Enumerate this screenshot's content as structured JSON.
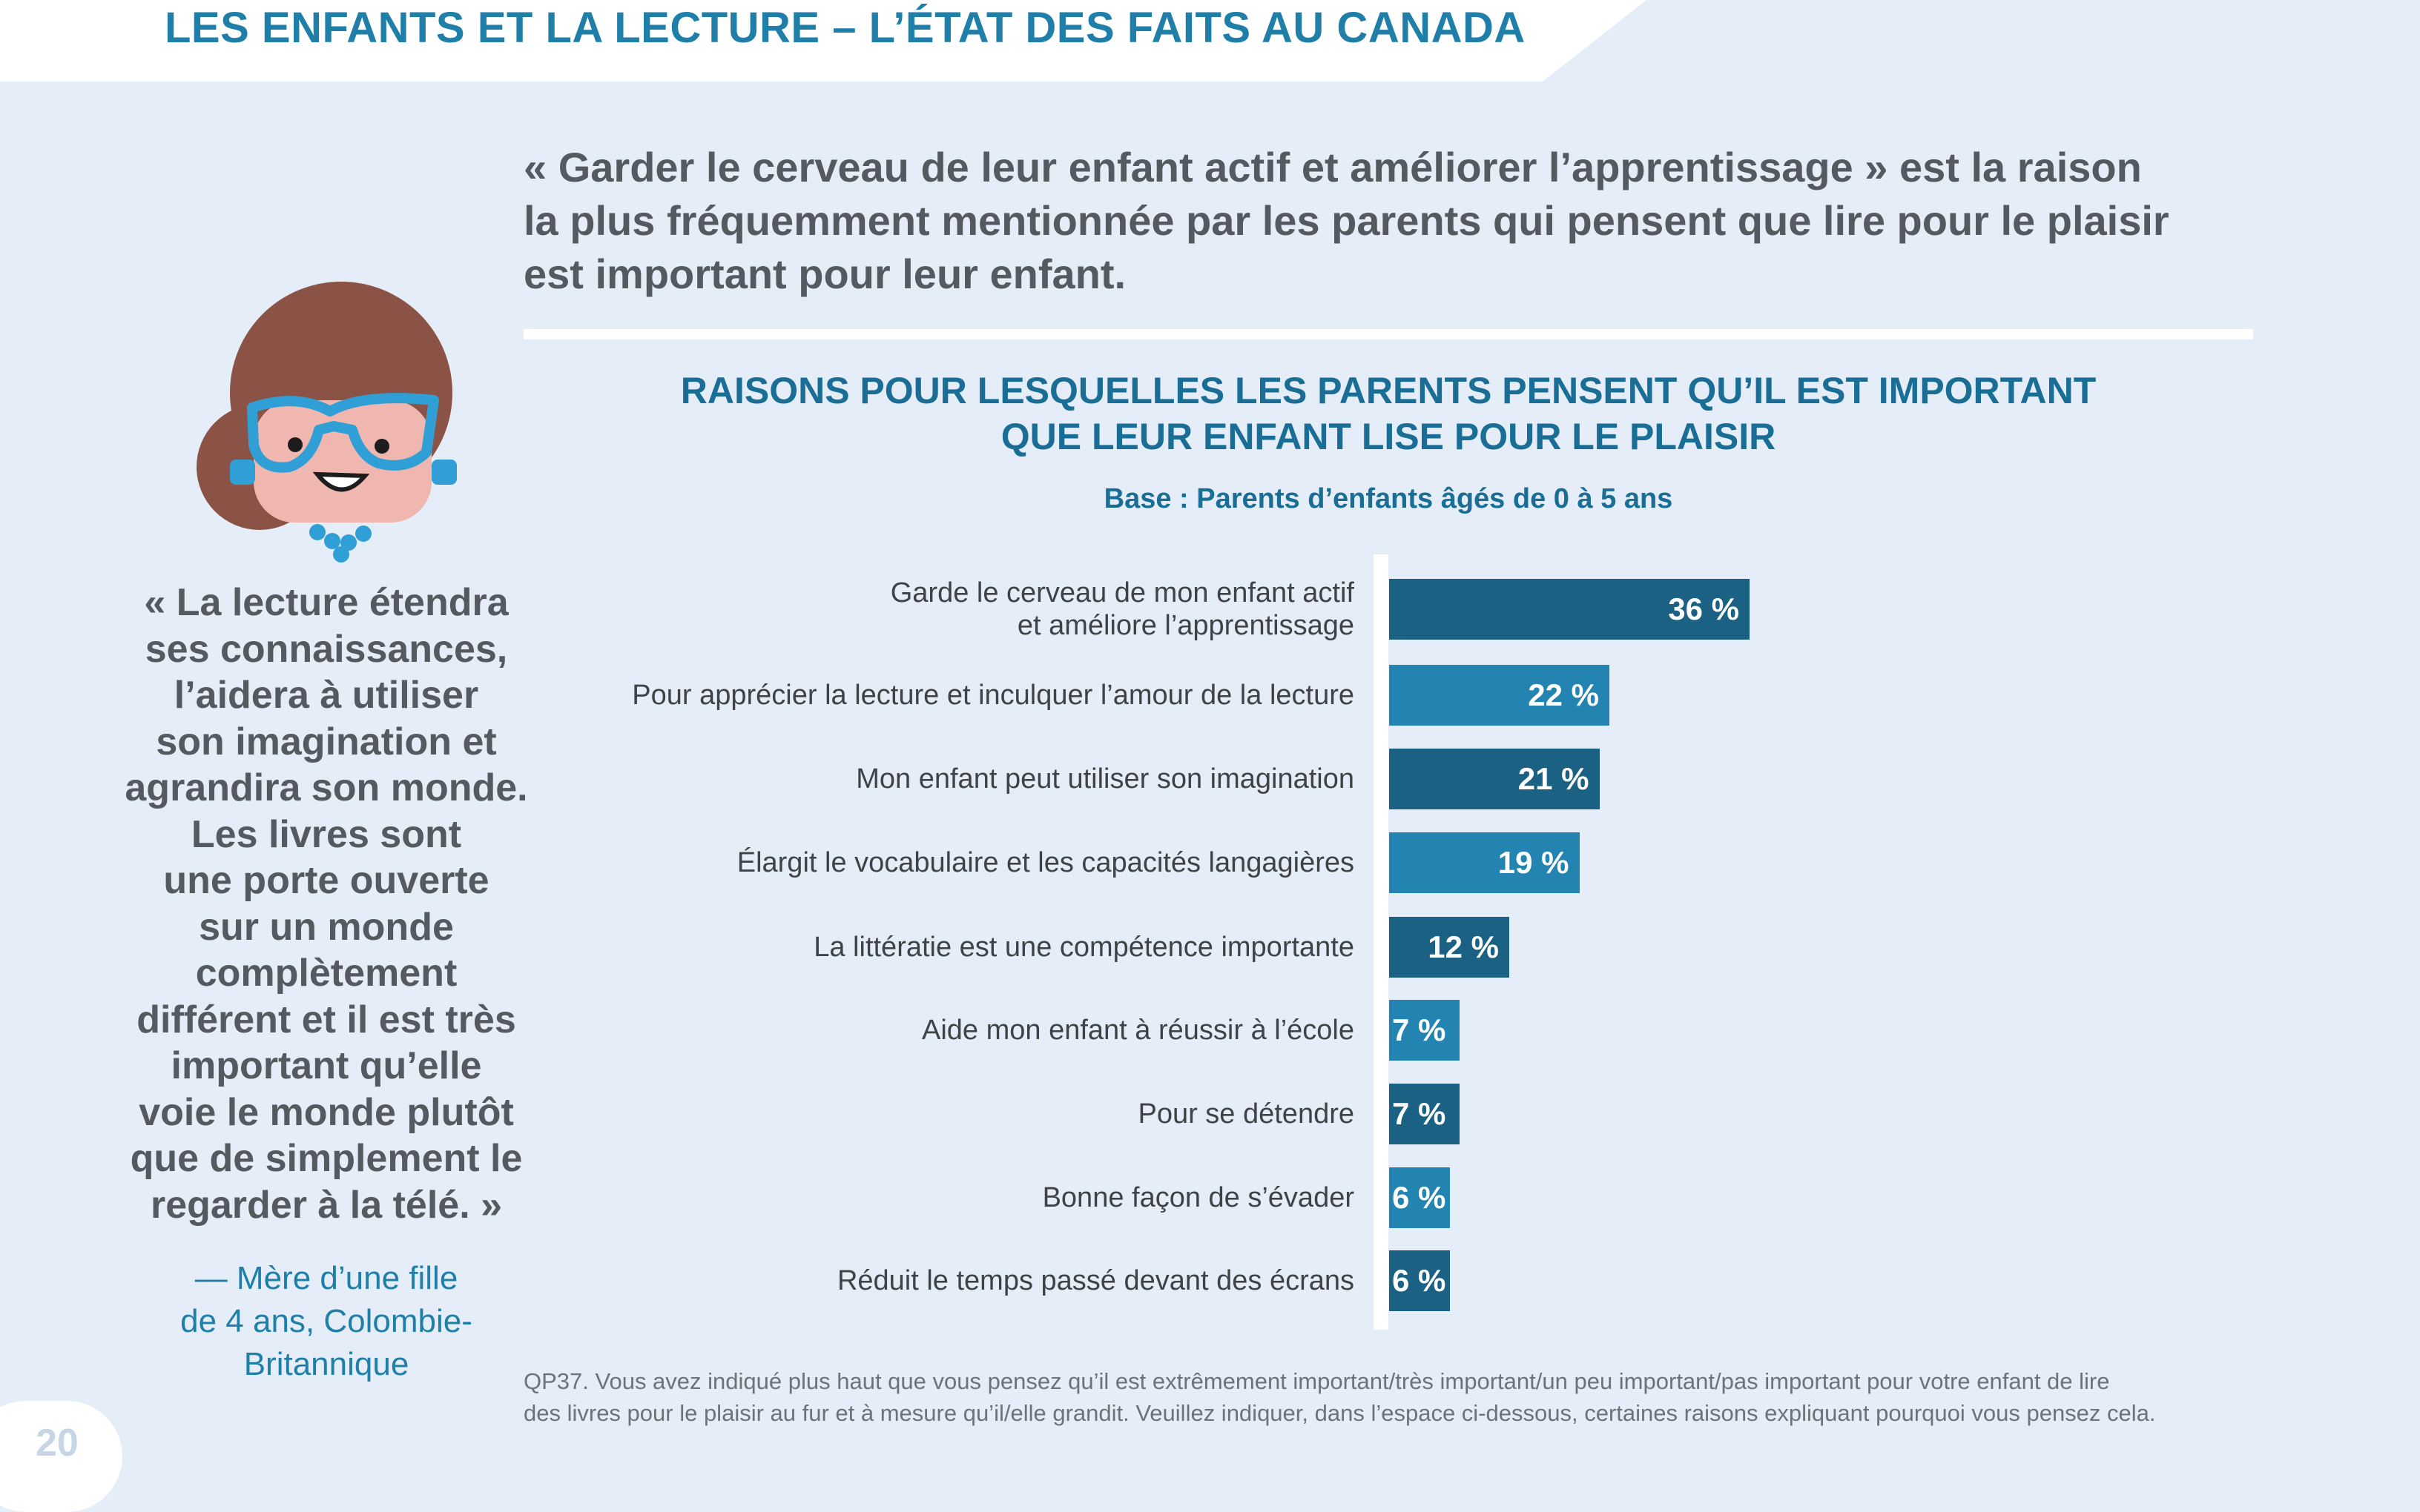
{
  "header": {
    "title": "LES ENFANTS ET LA LECTURE – L’ÉTAT DES FAITS AU CANADA"
  },
  "lead": {
    "lines": [
      "« Garder le cerveau de leur enfant actif et améliorer l’apprentissage » est la raison",
      "la plus fréquemment mentionnée par les parents qui pensent que lire pour le plaisir",
      "est important pour leur enfant."
    ]
  },
  "quote": {
    "lines": [
      "« La lecture étendra",
      "ses connaissances,",
      "l’aidera à utiliser",
      "son imagination et",
      "agrandira son monde.",
      "Les livres sont",
      "une porte ouverte",
      "sur un monde",
      "complètement",
      "différent et il est très",
      "important qu’elle",
      "voie le monde plutôt",
      "que de simplement le",
      "regarder à la télé. »"
    ],
    "attribution": [
      "— Mère d’une fille",
      "de 4 ans, Colombie-",
      "Britannique"
    ]
  },
  "footnote": {
    "lines": [
      "QP37. Vous avez indiqué plus haut que vous pensez qu’il est extrêmement important/très important/un peu important/pas important pour votre enfant de lire",
      "des livres pour le plaisir au fur et à mesure qu’il/elle grandit. Veuillez indiquer, dans l’espace ci-dessous, certaines raisons expliquant pourquoi vous pensez cela."
    ]
  },
  "page_number": "20",
  "colors": {
    "bar_dark": "#1a6184",
    "bar_light": "#2384b1",
    "title_blue": "#1f7fa9"
  },
  "chart_data": {
    "type": "bar",
    "orientation": "horizontal",
    "title_lines": [
      "RAISONS POUR LESQUELLES LES PARENTS PENSENT QU’IL EST IMPORTANT",
      "QUE LEUR ENFANT LISE POUR LE PLAISIR"
    ],
    "subtitle": "Base : Parents d’enfants âgés de 0 à 5 ans",
    "categories": [
      [
        "Garde le cerveau de mon enfant actif",
        "et améliore l’apprentissage"
      ],
      [
        "Pour apprécier la lecture et inculquer l’amour de la lecture"
      ],
      [
        "Mon enfant peut utiliser son imagination"
      ],
      [
        "Élargit le vocabulaire et les capacités langagières"
      ],
      [
        "La littératie est une compétence importante"
      ],
      [
        "Aide mon enfant à réussir à l’école"
      ],
      [
        "Pour se détendre"
      ],
      [
        "Bonne façon de s’évader"
      ],
      [
        "Réduit le temps passé devant des écrans"
      ]
    ],
    "values": [
      36,
      22,
      21,
      19,
      12,
      7,
      7,
      6,
      6
    ],
    "value_labels": [
      "36 %",
      "22 %",
      "21 %",
      "19 %",
      "12 %",
      "7 %",
      "7 %",
      "6 %",
      "6 %"
    ],
    "unit": "%",
    "grid": false,
    "legend": "none"
  }
}
